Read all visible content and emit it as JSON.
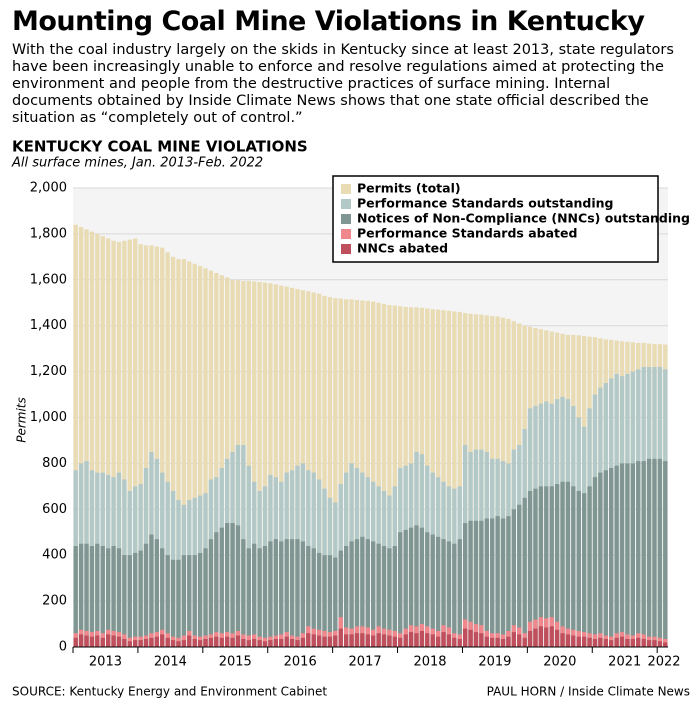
{
  "title": "Mounting Coal Mine Violations in Kentucky",
  "intro": "With the coal industry largely on the skids in Kentucky since at least 2013, state regulators have been increasingly unable to enforce and resolve regulations aimed at protecting the environment and people from the destructive practices of surface mining. Internal documents obtained by Inside Climate News shows that one state official described the situation as “completely out of control.”",
  "source": "SOURCE: Kentucky Energy and Environment Cabinet",
  "credit": "PAUL HORN / Inside Climate News",
  "chart_data": {
    "type": "bar",
    "title": "KENTUCKY COAL MINE VIOLATIONS",
    "subtitle": "All surface mines, Jan. 2013-Feb. 2022",
    "y_label": "Permits",
    "ylim": [
      0,
      2000
    ],
    "yticks": [
      0,
      200,
      400,
      600,
      800,
      {
        "value": 1000,
        "label": "1,000"
      },
      {
        "value": 1200,
        "label": "1,200"
      },
      {
        "value": 1400,
        "label": "1,400"
      },
      {
        "value": 1600,
        "label": "1,600"
      },
      {
        "value": 1800,
        "label": "1,800"
      },
      {
        "value": 2000,
        "label": "2,000"
      }
    ],
    "xticks": [
      2013,
      2014,
      2015,
      2016,
      2017,
      2018,
      2019,
      2020,
      2021,
      2022
    ],
    "grid": true,
    "legend": "top-right",
    "series": [
      {
        "name": "Permits (total)",
        "color": "#e9dcb4",
        "values": [
          1840,
          1830,
          1820,
          1810,
          1800,
          1790,
          1780,
          1770,
          1765,
          1770,
          1775,
          1780,
          1755,
          1750,
          1750,
          1745,
          1740,
          1720,
          1700,
          1690,
          1690,
          1680,
          1670,
          1660,
          1650,
          1640,
          1630,
          1620,
          1610,
          1600,
          1598,
          1595,
          1595,
          1593,
          1590,
          1588,
          1585,
          1580,
          1575,
          1570,
          1565,
          1560,
          1555,
          1550,
          1545,
          1540,
          1530,
          1525,
          1520,
          1518,
          1515,
          1515,
          1512,
          1510,
          1508,
          1505,
          1500,
          1495,
          1490,
          1488,
          1485,
          1482,
          1480,
          1480,
          1478,
          1475,
          1472,
          1470,
          1468,
          1465,
          1462,
          1460,
          1455,
          1452,
          1450,
          1448,
          1445,
          1442,
          1440,
          1435,
          1430,
          1420,
          1410,
          1400,
          1395,
          1390,
          1385,
          1380,
          1375,
          1370,
          1365,
          1360,
          1360,
          1358,
          1355,
          1352,
          1350,
          1345,
          1340,
          1338,
          1335,
          1332,
          1330,
          1328,
          1325,
          1325,
          1322,
          1320,
          1320,
          1318
        ]
      },
      {
        "name": "Performance Standards outstanding",
        "color": "#b2c9c8",
        "values": [
          770,
          800,
          810,
          770,
          760,
          760,
          750,
          740,
          760,
          730,
          680,
          700,
          710,
          780,
          850,
          820,
          760,
          720,
          680,
          640,
          620,
          640,
          650,
          660,
          670,
          730,
          740,
          780,
          820,
          850,
          880,
          880,
          790,
          720,
          680,
          700,
          750,
          740,
          720,
          760,
          770,
          790,
          800,
          770,
          760,
          730,
          690,
          650,
          630,
          710,
          760,
          800,
          780,
          760,
          740,
          720,
          700,
          680,
          660,
          700,
          780,
          790,
          800,
          850,
          840,
          790,
          760,
          740,
          720,
          700,
          690,
          700,
          880,
          850,
          860,
          860,
          850,
          820,
          820,
          810,
          800,
          860,
          880,
          950,
          1040,
          1050,
          1060,
          1070,
          1060,
          1080,
          1090,
          1080,
          1050,
          1000,
          960,
          1040,
          1100,
          1130,
          1150,
          1170,
          1190,
          1180,
          1190,
          1200,
          1210,
          1220,
          1220,
          1220,
          1220,
          1210
        ]
      },
      {
        "name": "Notices of Non-Compliance (NNCs) outstanding",
        "color": "#7f9692",
        "values": [
          440,
          450,
          450,
          440,
          450,
          440,
          430,
          440,
          430,
          400,
          400,
          410,
          420,
          450,
          490,
          470,
          430,
          400,
          380,
          380,
          400,
          400,
          400,
          410,
          430,
          470,
          500,
          520,
          540,
          540,
          530,
          470,
          430,
          450,
          430,
          440,
          460,
          470,
          460,
          470,
          470,
          470,
          460,
          440,
          430,
          410,
          400,
          400,
          390,
          420,
          440,
          460,
          470,
          480,
          470,
          460,
          450,
          440,
          430,
          440,
          500,
          510,
          520,
          530,
          520,
          500,
          490,
          480,
          470,
          460,
          450,
          470,
          540,
          550,
          550,
          550,
          560,
          560,
          570,
          560,
          570,
          600,
          620,
          650,
          680,
          690,
          700,
          700,
          700,
          710,
          720,
          720,
          700,
          680,
          670,
          700,
          740,
          760,
          770,
          780,
          790,
          800,
          800,
          800,
          810,
          810,
          820,
          820,
          820,
          810
        ]
      },
      {
        "name": "Performance Standards abated",
        "color": "#f0878d",
        "values": [
          60,
          75,
          70,
          65,
          70,
          60,
          75,
          70,
          65,
          55,
          40,
          45,
          45,
          50,
          60,
          65,
          75,
          60,
          45,
          40,
          50,
          70,
          50,
          45,
          50,
          55,
          65,
          60,
          65,
          60,
          70,
          55,
          50,
          55,
          45,
          40,
          45,
          50,
          55,
          65,
          50,
          45,
          60,
          90,
          80,
          75,
          70,
          65,
          70,
          130,
          85,
          80,
          90,
          90,
          85,
          75,
          90,
          80,
          75,
          70,
          60,
          80,
          95,
          90,
          100,
          90,
          80,
          70,
          95,
          85,
          60,
          55,
          120,
          110,
          100,
          95,
          70,
          60,
          60,
          55,
          70,
          95,
          85,
          60,
          110,
          120,
          130,
          125,
          130,
          110,
          90,
          80,
          75,
          70,
          65,
          60,
          55,
          60,
          50,
          45,
          60,
          65,
          55,
          50,
          60,
          55,
          45,
          45,
          40,
          35
        ]
      },
      {
        "name": "NNCs abated",
        "color": "#bf4f5d",
        "values": [
          40,
          55,
          50,
          45,
          50,
          40,
          55,
          50,
          45,
          35,
          25,
          30,
          30,
          35,
          40,
          45,
          55,
          40,
          30,
          25,
          30,
          50,
          35,
          30,
          35,
          40,
          45,
          40,
          45,
          40,
          50,
          35,
          30,
          35,
          30,
          25,
          30,
          35,
          35,
          45,
          35,
          30,
          40,
          60,
          55,
          50,
          45,
          45,
          50,
          80,
          55,
          55,
          60,
          60,
          55,
          50,
          60,
          55,
          50,
          45,
          40,
          55,
          65,
          60,
          70,
          60,
          55,
          45,
          65,
          55,
          40,
          35,
          80,
          75,
          65,
          60,
          45,
          40,
          40,
          35,
          45,
          65,
          55,
          40,
          70,
          80,
          90,
          85,
          90,
          75,
          60,
          55,
          50,
          45,
          45,
          40,
          35,
          40,
          35,
          30,
          40,
          45,
          35,
          35,
          40,
          35,
          30,
          30,
          25,
          20
        ]
      }
    ]
  }
}
